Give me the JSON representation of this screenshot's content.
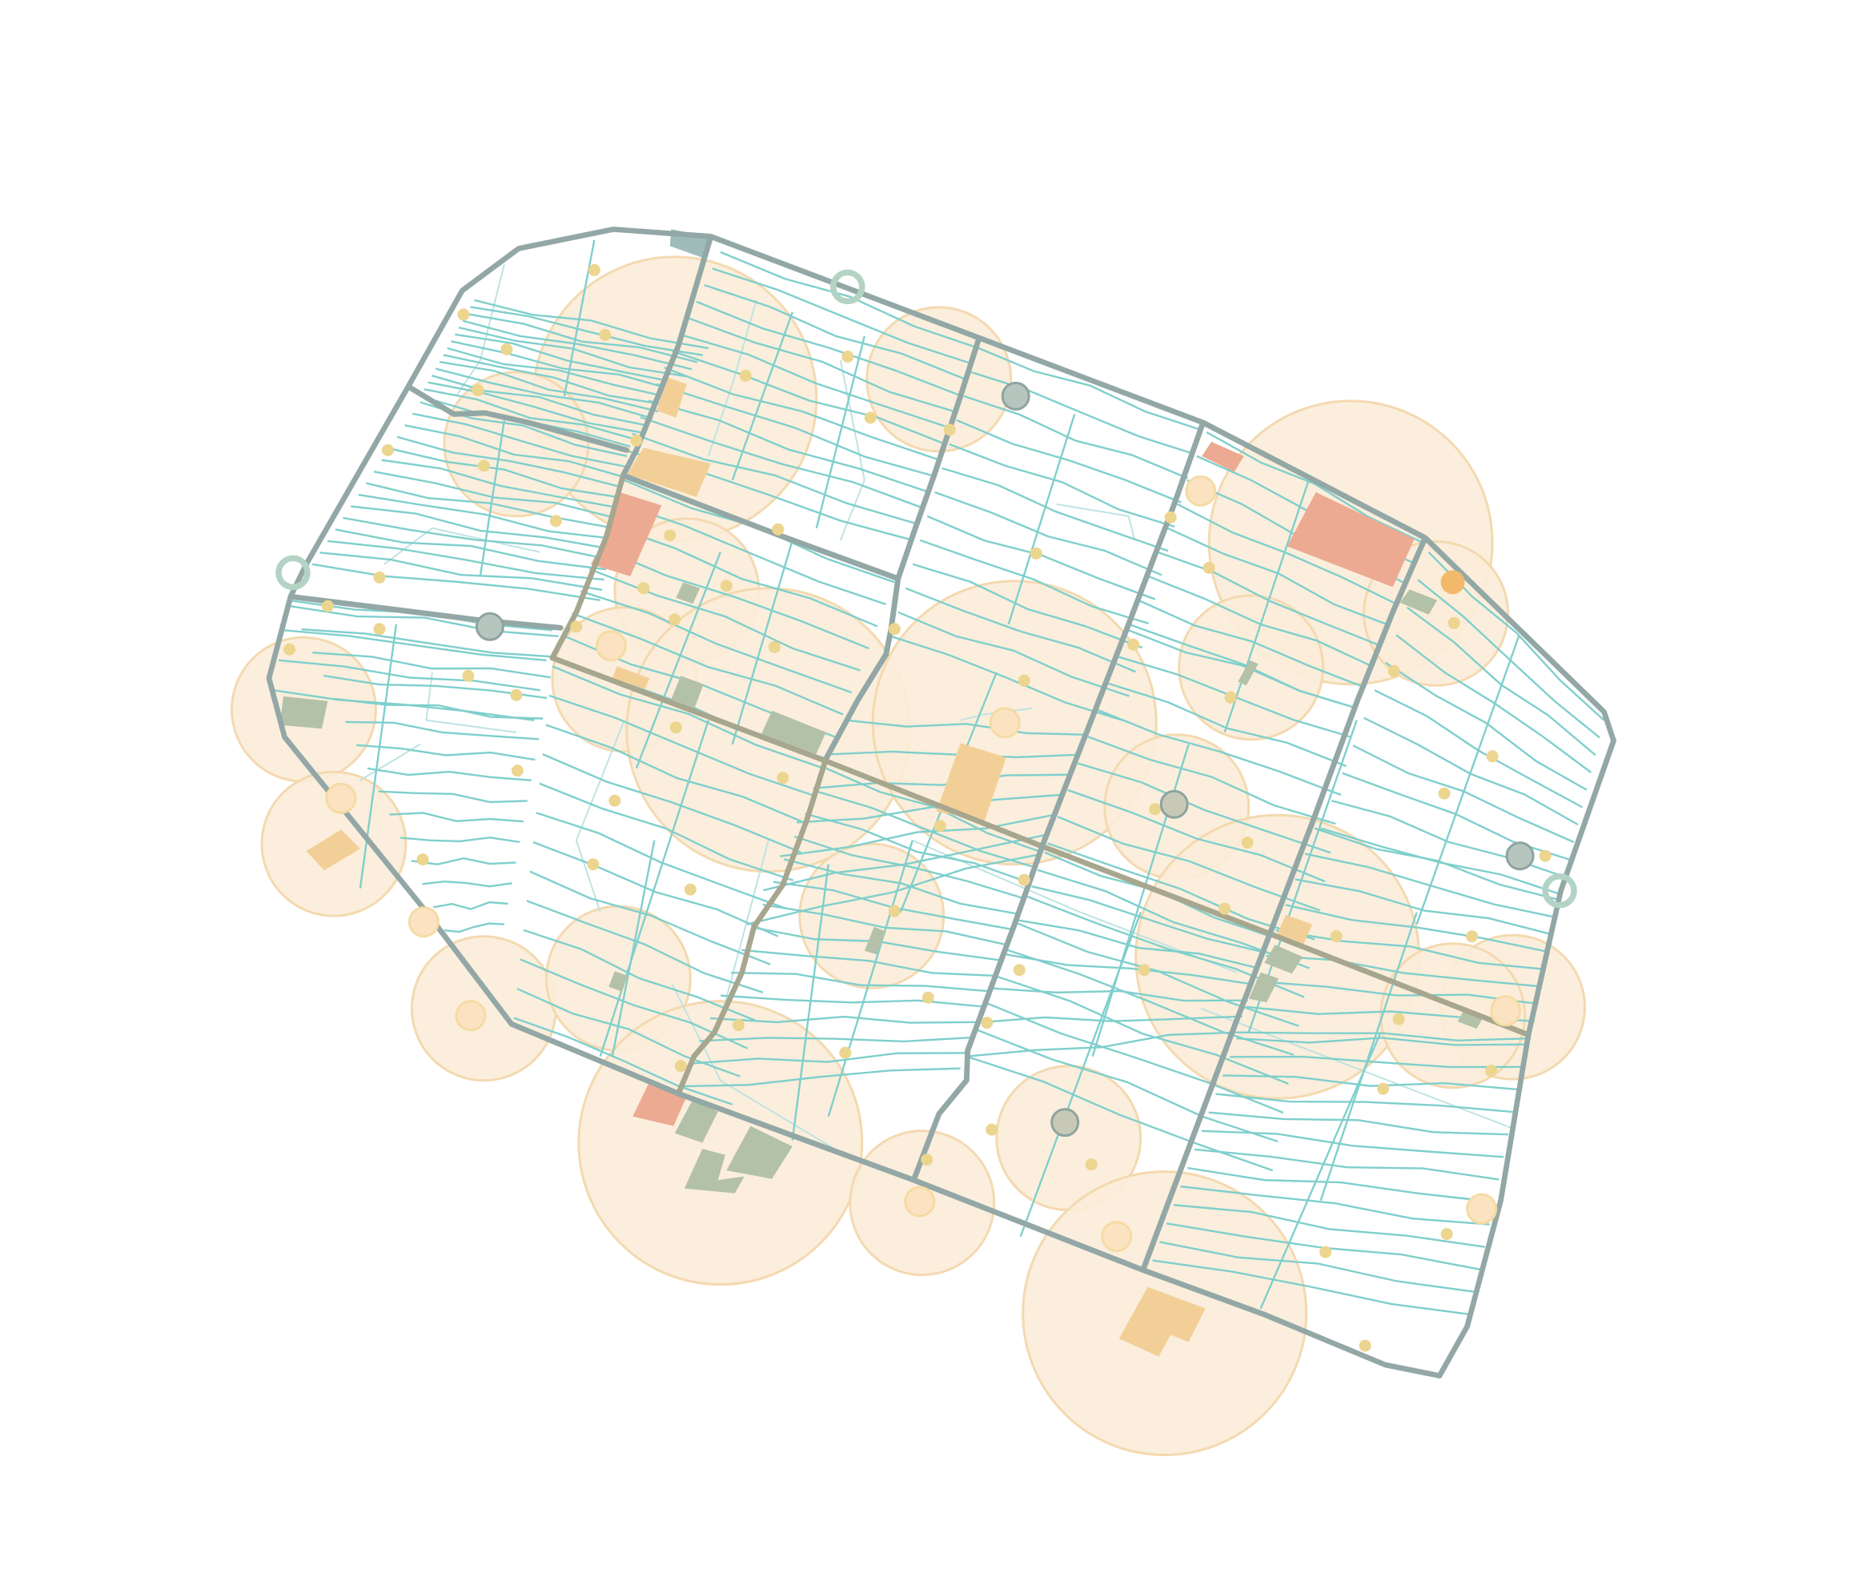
{
  "map": {
    "colors": {
      "background": "#ffffff",
      "boundary": "#93a8a6",
      "arterial": "#a7a68f",
      "street": "#7fcfcc",
      "lane": "#bde3e2",
      "buffer_fill": "#fbecd8",
      "buffer_stroke": "#f4d9b0",
      "poi_dot": "#ecd58f",
      "poi_ring": "#f5dba3",
      "building_orange": "#f3cf98",
      "building_red": "#ecaa92",
      "building_green": "#b4c1a9",
      "station_fill": "#b6c6bf",
      "station_stroke": "#8ea39f",
      "gateway_ring": "#b3d3c5",
      "accent_orange": "#f2b96b"
    },
    "legend": {},
    "title": ""
  }
}
